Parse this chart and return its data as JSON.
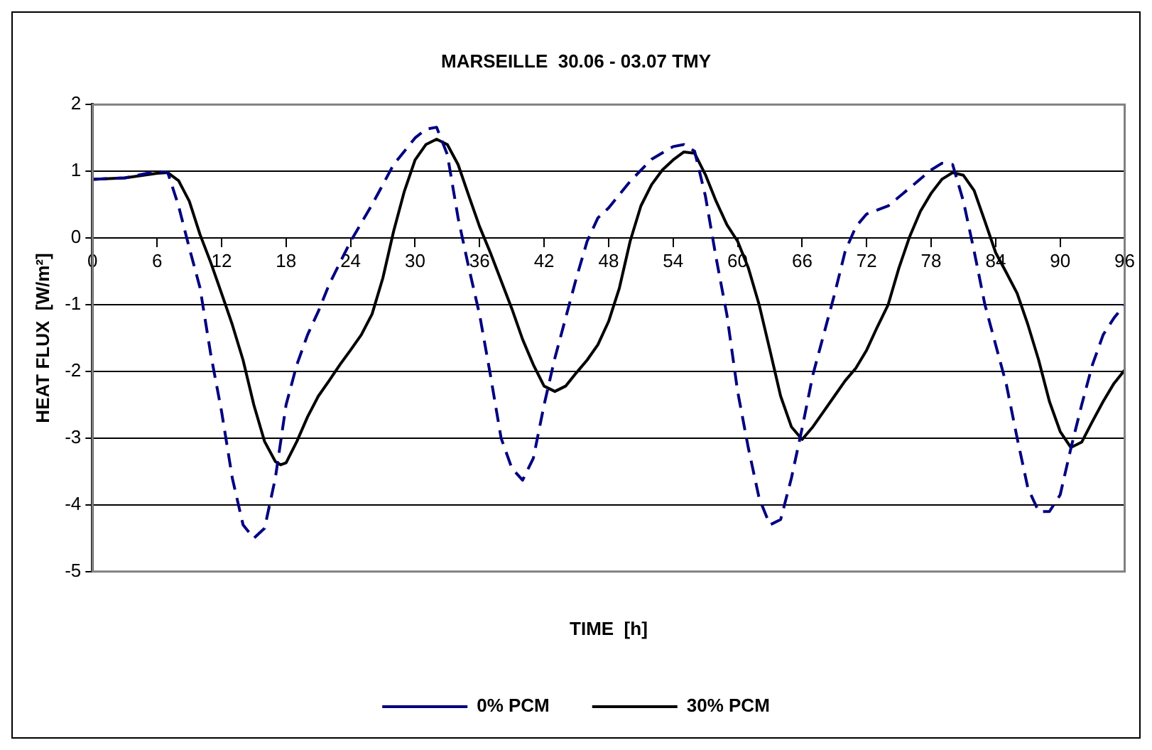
{
  "chart_data": {
    "type": "line",
    "title": "MARSEILLE  30.06 - 03.07 TMY",
    "xlabel": "TIME  [h]",
    "ylabel": "HEAT FLUX  [W/m²]",
    "xlim": [
      0,
      96
    ],
    "xticks": [
      0,
      6,
      12,
      18,
      24,
      30,
      36,
      42,
      48,
      54,
      60,
      66,
      72,
      78,
      84,
      90,
      96
    ],
    "ylim": [
      -5,
      2
    ],
    "yticks": [
      -5,
      -4,
      -3,
      -2,
      -1,
      0,
      1,
      2
    ],
    "grid": "y",
    "legend": "bottom",
    "marker": "none",
    "series": [
      {
        "name": "0% PCM",
        "color": "#000080",
        "line_style": "dashed",
        "x": [
          0,
          3,
          6,
          7,
          8,
          9,
          10,
          11,
          12,
          13,
          14,
          15,
          16,
          17,
          18,
          19,
          20,
          21,
          22,
          24,
          26,
          28,
          30,
          31,
          32,
          33,
          34,
          35,
          36,
          37,
          38,
          39,
          40,
          41,
          42,
          43,
          44,
          45,
          46,
          47,
          48,
          50,
          52,
          54,
          55,
          56,
          57,
          58,
          59,
          60,
          61,
          62,
          63,
          64,
          65,
          66,
          67,
          68,
          69,
          70,
          71,
          72,
          74,
          76,
          78,
          79,
          80,
          81,
          82,
          83,
          84,
          85,
          86,
          87,
          88,
          89,
          90,
          91,
          92,
          93,
          94,
          95,
          96
        ],
        "values": [
          0.88,
          0.9,
          1.0,
          0.98,
          0.48,
          -0.15,
          -0.75,
          -1.75,
          -2.6,
          -3.6,
          -4.3,
          -4.5,
          -4.35,
          -3.6,
          -2.5,
          -1.9,
          -1.45,
          -1.1,
          -0.7,
          -0.05,
          0.5,
          1.1,
          1.5,
          1.63,
          1.66,
          1.25,
          0.3,
          -0.45,
          -1.15,
          -2.05,
          -3.0,
          -3.45,
          -3.63,
          -3.3,
          -2.5,
          -1.8,
          -1.2,
          -0.6,
          -0.05,
          0.3,
          0.45,
          0.85,
          1.18,
          1.37,
          1.4,
          1.3,
          0.63,
          -0.3,
          -1.15,
          -2.3,
          -3.15,
          -3.9,
          -4.3,
          -4.22,
          -3.6,
          -2.85,
          -2.05,
          -1.45,
          -0.85,
          -0.2,
          0.17,
          0.36,
          0.48,
          0.75,
          1.02,
          1.12,
          1.1,
          0.55,
          -0.2,
          -1.0,
          -1.6,
          -2.2,
          -3.0,
          -3.75,
          -4.1,
          -4.1,
          -3.85,
          -3.15,
          -2.5,
          -1.9,
          -1.45,
          -1.2,
          -1.0
        ]
      },
      {
        "name": "30% PCM",
        "color": "#000000",
        "line_style": "solid",
        "x": [
          0,
          3,
          6,
          7,
          8,
          9,
          10,
          11,
          12,
          13,
          14,
          15,
          16,
          17,
          17.5,
          18,
          19,
          20,
          21,
          22,
          23,
          24,
          25,
          26,
          27,
          28,
          29,
          30,
          31,
          32,
          33,
          34,
          35,
          36,
          37,
          38,
          39,
          40,
          41,
          42,
          43,
          44,
          45,
          46,
          47,
          48,
          49,
          50,
          51,
          52,
          53,
          54,
          55,
          56,
          57,
          58,
          59,
          60,
          61,
          62,
          63,
          64,
          65,
          66,
          67,
          68,
          69,
          70,
          71,
          72,
          73,
          74,
          75,
          76,
          77,
          78,
          79,
          80,
          81,
          82,
          83,
          84,
          85,
          86,
          87,
          88,
          89,
          90,
          91,
          92,
          93,
          94,
          95,
          96
        ],
        "values": [
          0.88,
          0.9,
          0.97,
          0.98,
          0.86,
          0.55,
          0.05,
          -0.37,
          -0.83,
          -1.3,
          -1.83,
          -2.5,
          -3.05,
          -3.35,
          -3.4,
          -3.37,
          -3.05,
          -2.68,
          -2.37,
          -2.14,
          -1.9,
          -1.68,
          -1.45,
          -1.14,
          -0.6,
          0.1,
          0.7,
          1.17,
          1.4,
          1.48,
          1.4,
          1.1,
          0.63,
          0.17,
          -0.22,
          -0.64,
          -1.06,
          -1.52,
          -1.9,
          -2.22,
          -2.3,
          -2.22,
          -2.02,
          -1.83,
          -1.6,
          -1.25,
          -0.75,
          -0.05,
          0.48,
          0.8,
          1.02,
          1.17,
          1.29,
          1.27,
          0.95,
          0.55,
          0.2,
          -0.05,
          -0.45,
          -1.0,
          -1.68,
          -2.37,
          -2.83,
          -3.02,
          -2.83,
          -2.6,
          -2.37,
          -2.14,
          -1.95,
          -1.68,
          -1.33,
          -1.0,
          -0.45,
          0.02,
          0.4,
          0.67,
          0.88,
          0.98,
          0.94,
          0.71,
          0.25,
          -0.22,
          -0.52,
          -0.83,
          -1.3,
          -1.83,
          -2.45,
          -2.9,
          -3.14,
          -3.06,
          -2.75,
          -2.45,
          -2.18,
          -1.98
        ]
      }
    ]
  }
}
